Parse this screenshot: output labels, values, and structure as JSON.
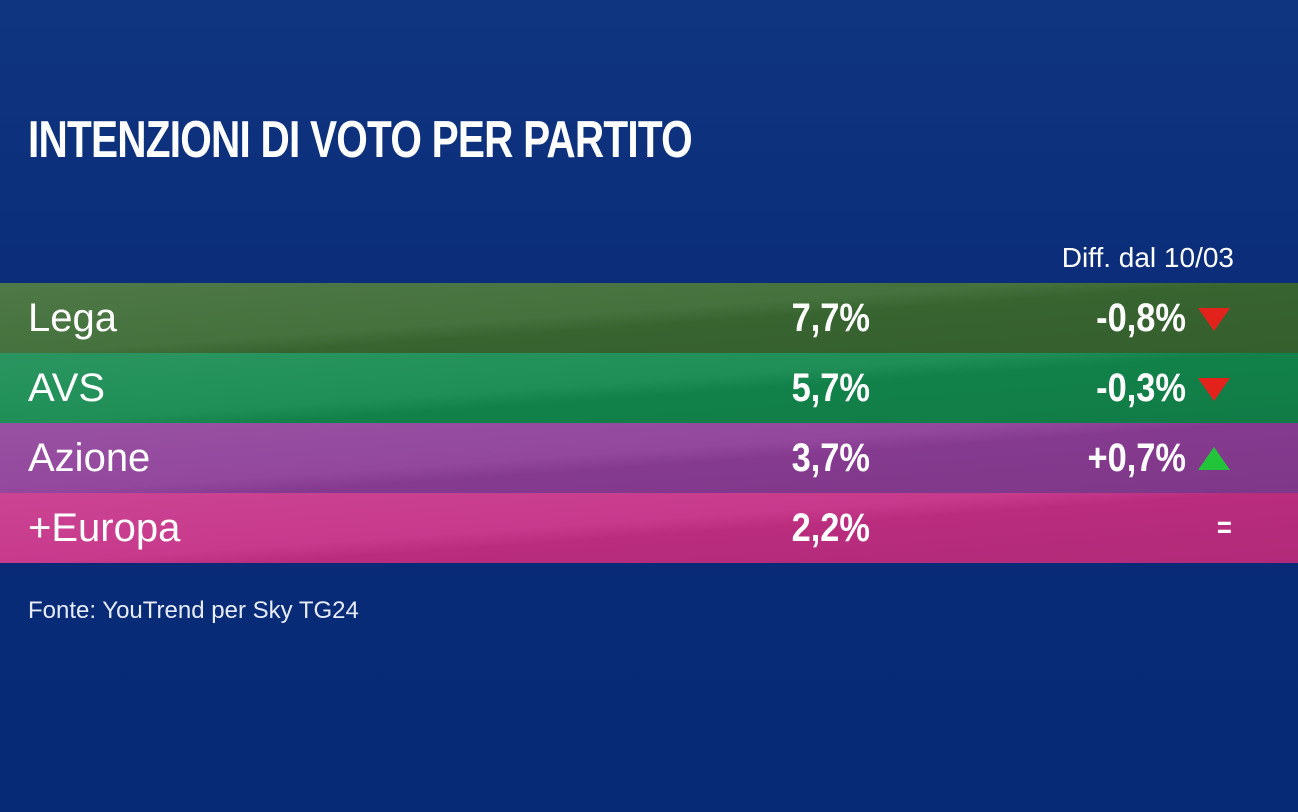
{
  "title": "INTENZIONI DI VOTO PER PARTITO",
  "diff_header": "Diff. dal 10/03",
  "source": "Fonte: YouTrend per Sky TG24",
  "colors": {
    "background": "#0b2c78",
    "down_arrow": "#e3231b",
    "up_arrow": "#22c43a"
  },
  "chart_data": {
    "type": "table",
    "columns": [
      "",
      "",
      "Diff. dal 10/03"
    ],
    "rows": [
      {
        "party": "Lega",
        "value": "7,7%",
        "diff": "-0,8%",
        "trend": "down",
        "color": "#3b6a33"
      },
      {
        "party": "AVS",
        "value": "5,7%",
        "diff": "-0,3%",
        "trend": "down",
        "color": "#13894e"
      },
      {
        "party": "Azione",
        "value": "3,7%",
        "diff": "+0,7%",
        "trend": "up",
        "color": "#8d3e98"
      },
      {
        "party": "+Europa",
        "value": "2,2%",
        "diff": "=",
        "trend": "equal",
        "color": "#c52f86"
      }
    ]
  }
}
